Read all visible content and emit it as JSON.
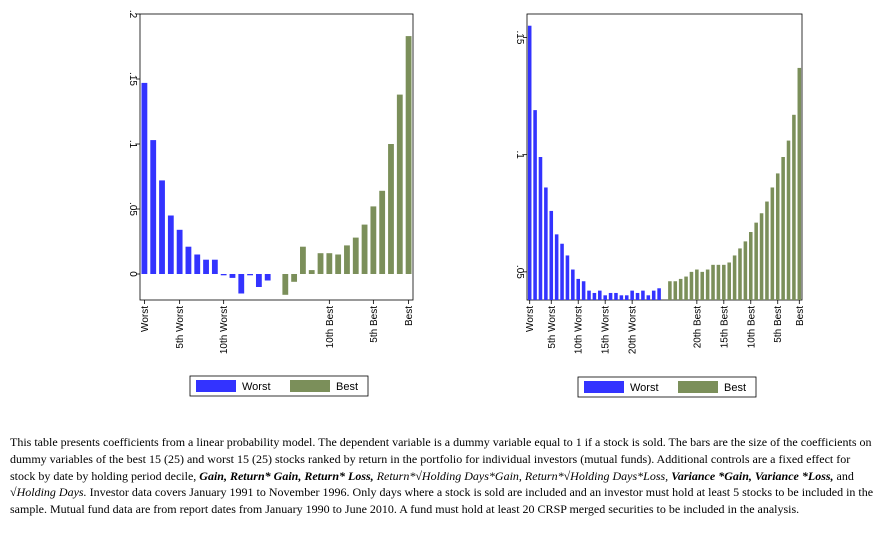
{
  "chart_data": [
    {
      "type": "bar",
      "title": "",
      "ylabel": "",
      "ylim": [
        -0.02,
        0.2
      ],
      "yticks": [
        {
          "value": 0.2,
          "label": ".2"
        },
        {
          "value": 0.15,
          "label": ".15"
        },
        {
          "value": 0.1,
          "label": ".1"
        },
        {
          "value": 0.05,
          "label": ".05"
        },
        {
          "value": 0,
          "label": "0"
        }
      ],
      "series": [
        {
          "name": "Worst",
          "color": "#3333ff",
          "positions": [
            1,
            2,
            3,
            4,
            5,
            6,
            7,
            8,
            9,
            10,
            11,
            12,
            13,
            14,
            15
          ],
          "values": [
            0.147,
            0.103,
            0.072,
            0.045,
            0.034,
            0.021,
            0.015,
            0.011,
            0.011,
            -0.001,
            -0.003,
            -0.015,
            -0.001,
            -0.01,
            -0.005
          ]
        },
        {
          "name": "Best",
          "color": "#7b8f5a",
          "positions": [
            17,
            18,
            19,
            20,
            21,
            22,
            23,
            24,
            25,
            26,
            27,
            28,
            29,
            30,
            31
          ],
          "values": [
            -0.016,
            -0.006,
            0.021,
            0.003,
            0.016,
            0.016,
            0.015,
            0.022,
            0.028,
            0.038,
            0.052,
            0.064,
            0.1,
            0.138,
            0.183
          ]
        }
      ],
      "xticks": [
        {
          "pos": 1,
          "label": "Worst"
        },
        {
          "pos": 5,
          "label": "5th Worst"
        },
        {
          "pos": 10,
          "label": "10th Worst"
        },
        {
          "pos": 22,
          "label": "10th Best"
        },
        {
          "pos": 27,
          "label": "5th Best"
        },
        {
          "pos": 31,
          "label": "Best"
        }
      ],
      "legend": [
        "Worst",
        "Best"
      ]
    },
    {
      "type": "bar",
      "title": "",
      "ylabel": "",
      "ylim": [
        0.038,
        0.16
      ],
      "yticks": [
        {
          "value": 0.15,
          "label": ".15"
        },
        {
          "value": 0.1,
          "label": ".1"
        },
        {
          "value": 0.05,
          "label": ".05"
        }
      ],
      "series": [
        {
          "name": "Worst",
          "color": "#3333ff",
          "positions": [
            1,
            2,
            3,
            4,
            5,
            6,
            7,
            8,
            9,
            10,
            11,
            12,
            13,
            14,
            15,
            16,
            17,
            18,
            19,
            20,
            21,
            22,
            23,
            24,
            25
          ],
          "values": [
            0.155,
            0.119,
            0.099,
            0.086,
            0.076,
            0.066,
            0.062,
            0.057,
            0.051,
            0.047,
            0.046,
            0.042,
            0.041,
            0.042,
            0.04,
            0.041,
            0.041,
            0.04,
            0.04,
            0.042,
            0.041,
            0.042,
            0.04,
            0.042,
            0.043
          ]
        },
        {
          "name": "Best",
          "color": "#7b8f5a",
          "positions": [
            27,
            28,
            29,
            30,
            31,
            32,
            33,
            34,
            35,
            36,
            37,
            38,
            39,
            40,
            41,
            42,
            43,
            44,
            45,
            46,
            47,
            48,
            49,
            50,
            51
          ],
          "values": [
            0.046,
            0.046,
            0.047,
            0.048,
            0.05,
            0.051,
            0.05,
            0.051,
            0.053,
            0.053,
            0.053,
            0.054,
            0.057,
            0.06,
            0.063,
            0.067,
            0.071,
            0.075,
            0.08,
            0.086,
            0.092,
            0.099,
            0.106,
            0.117,
            0.137
          ]
        }
      ],
      "xticks": [
        {
          "pos": 1,
          "label": "Worst"
        },
        {
          "pos": 5,
          "label": "5th Worst"
        },
        {
          "pos": 10,
          "label": "10th Worst"
        },
        {
          "pos": 15,
          "label": "15th Worst"
        },
        {
          "pos": 20,
          "label": "20th Worst"
        },
        {
          "pos": 32,
          "label": "20th Best"
        },
        {
          "pos": 37,
          "label": "15th Best"
        },
        {
          "pos": 42,
          "label": "10th Best"
        },
        {
          "pos": 47,
          "label": "5th Best"
        },
        {
          "pos": 51,
          "label": "Best"
        }
      ],
      "legend": [
        "Worst",
        "Best"
      ]
    }
  ],
  "caption": {
    "p1": "This table presents coefficients from a linear probability model. The dependent variable is a dummy variable equal to 1 if a stock is sold. The bars are the size of the coefficients on dummy variables of the best 15 (25) and worst 15 (25) stocks ranked by return in the portfolio for individual investors (mutual funds). Additional controls are a fixed effect for stock by date by holding period decile, ",
    "v1": "Gain, Return* Gain, Return* Loss, ",
    "v2": "Return*√Holding Days*Gain, Return*√Holding Days*Loss, ",
    "v3": "Variance *Gain, Variance *Loss,",
    "and": " and ",
    "v4": "√Holding Days.",
    "p2": "  Investor data covers January 1991 to November 1996. Only days where a stock is sold are included and an investor must hold at least 5 stocks to be included in the sample. Mutual fund data are from report dates from January 1990 to June 2010. A fund must hold at least 20 CRSP merged securities to be included in the analysis."
  }
}
